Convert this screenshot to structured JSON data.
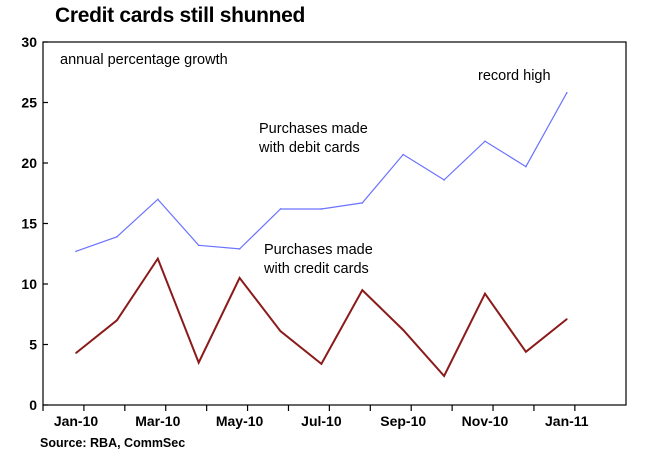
{
  "title": "Credit cards still shunned",
  "source": "Source: RBA, CommSec",
  "chart_data": {
    "type": "line",
    "title": "Credit cards still shunned",
    "subtitle": "annual percentage growth",
    "categories": [
      "Jan-10",
      "Feb-10",
      "Mar-10",
      "Apr-10",
      "May-10",
      "Jun-10",
      "Jul-10",
      "Aug-10",
      "Sep-10",
      "Oct-10",
      "Nov-10",
      "Dec-10",
      "Jan-11"
    ],
    "x_tick_labels": [
      "Jan-10",
      "Mar-10",
      "May-10",
      "Jul-10",
      "Sep-10",
      "Nov-10",
      "Jan-11"
    ],
    "y_tick_labels": [
      "0",
      "5",
      "10",
      "15",
      "20",
      "25",
      "30"
    ],
    "ylim": [
      0,
      30
    ],
    "grid": false,
    "series": [
      {
        "name": "Purchases made with debit cards",
        "color": "#6b73ff",
        "values": [
          12.7,
          13.9,
          17.0,
          13.2,
          12.9,
          16.2,
          16.2,
          16.7,
          20.7,
          18.6,
          21.8,
          19.7,
          25.8
        ]
      },
      {
        "name": "Purchases made with credit cards",
        "color": "#8b1a1a",
        "values": [
          4.3,
          7.0,
          12.1,
          3.5,
          10.5,
          6.1,
          3.4,
          9.5,
          6.2,
          2.4,
          9.2,
          4.4,
          7.1
        ]
      }
    ],
    "annotations": {
      "subtitle": "annual percentage growth",
      "record": "record high",
      "debit_line1": "Purchases made",
      "debit_line2": "with debit cards",
      "credit_line1": "Purchases made",
      "credit_line2": "with credit cards"
    }
  }
}
